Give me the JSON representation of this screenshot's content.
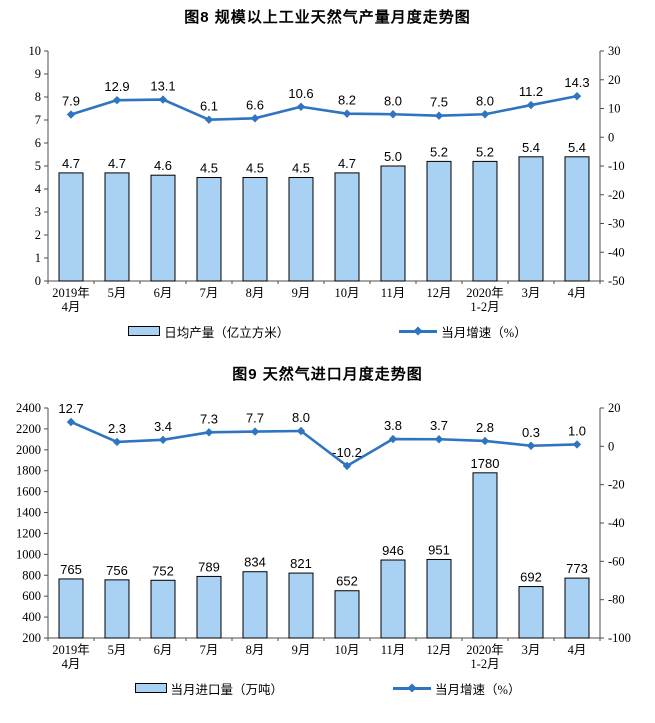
{
  "colors": {
    "bar_fill": "#a9d1f4",
    "bar_stroke": "#000000",
    "line": "#2e74c0",
    "axis": "#4d4d4d",
    "text": "#000000"
  },
  "chart_data": [
    {
      "type": "bar+line",
      "title": "图8  规模以上工业天然气产量月度走势图",
      "categories": [
        "2019年\n4月",
        "5月",
        "6月",
        "7月",
        "8月",
        "9月",
        "10月",
        "11月",
        "12月",
        "2020年\n1-2月",
        "3月",
        "4月"
      ],
      "series": [
        {
          "name": "日均产量（亿立方米）",
          "type": "bar",
          "axis": "left",
          "values": [
            4.7,
            4.7,
            4.6,
            4.5,
            4.5,
            4.5,
            4.7,
            5.0,
            5.2,
            5.2,
            5.4,
            5.4
          ],
          "labels": [
            "4.7",
            "4.7",
            "4.6",
            "4.5",
            "4.5",
            "4.5",
            "4.7",
            "5.0",
            "5.2",
            "5.2",
            "5.4",
            "5.4"
          ]
        },
        {
          "name": "当月增速（%）",
          "type": "line",
          "axis": "right",
          "values": [
            7.9,
            12.9,
            13.1,
            6.1,
            6.6,
            10.6,
            8.2,
            8.0,
            7.5,
            8.0,
            11.2,
            14.3
          ],
          "labels": [
            "7.9",
            "12.9",
            "13.1",
            "6.1",
            "6.6",
            "10.6",
            "8.2",
            "8.0",
            "7.5",
            "8.0",
            "11.2",
            "14.3"
          ]
        }
      ],
      "left_axis": {
        "min": 0,
        "max": 10,
        "step": 1
      },
      "right_axis": {
        "min": -50,
        "max": 30,
        "step": 10
      },
      "grid": false,
      "legend_position": "bottom"
    },
    {
      "type": "bar+line",
      "title": "图9  天然气进口月度走势图",
      "categories": [
        "2019年\n4月",
        "5月",
        "6月",
        "7月",
        "8月",
        "9月",
        "10月",
        "11月",
        "12月",
        "2020年\n1-2月",
        "3月",
        "4月"
      ],
      "series": [
        {
          "name": "当月进口量（万吨）",
          "type": "bar",
          "axis": "left",
          "values": [
            765,
            756,
            752,
            789,
            834,
            821,
            652,
            946,
            951,
            1780,
            692,
            773
          ],
          "labels": [
            "765",
            "756",
            "752",
            "789",
            "834",
            "821",
            "652",
            "946",
            "951",
            "1780",
            "692",
            "773"
          ]
        },
        {
          "name": "当月增速（%）",
          "type": "line",
          "axis": "right",
          "values": [
            12.7,
            2.3,
            3.4,
            7.3,
            7.7,
            8.0,
            -10.2,
            3.8,
            3.7,
            2.8,
            0.3,
            1.0
          ],
          "labels": [
            "12.7",
            "2.3",
            "3.4",
            "7.3",
            "7.7",
            "8.0",
            "-10.2",
            "3.8",
            "3.7",
            "2.8",
            "0.3",
            "1.0"
          ]
        }
      ],
      "left_axis": {
        "min": 200,
        "max": 2400,
        "step": 200
      },
      "right_axis": {
        "min": -100,
        "max": 20,
        "step": 20
      },
      "grid": false,
      "legend_position": "bottom"
    }
  ]
}
